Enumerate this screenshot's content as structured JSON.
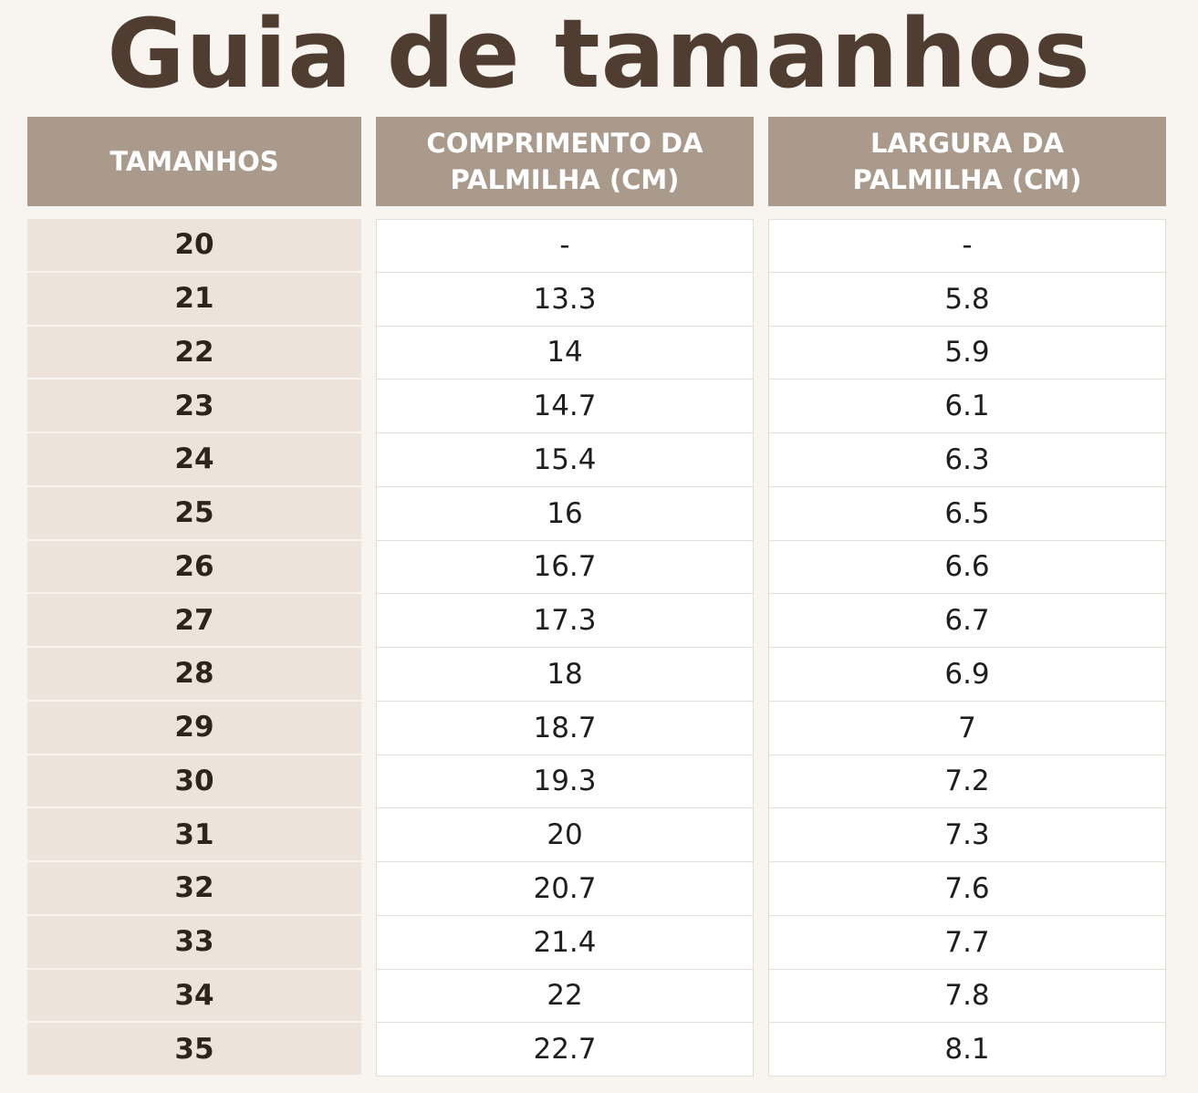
{
  "header": {
    "title": "Guia de tamanhos"
  },
  "table": {
    "columns": [
      "TAMANHOS",
      "COMPRIMENTO DA PALMILHA (CM)",
      "LARGURA DA PALMILHA (CM)"
    ],
    "rows": [
      [
        "20",
        "-",
        "-"
      ],
      [
        "21",
        "13.3",
        "5.8"
      ],
      [
        "22",
        "14",
        "5.9"
      ],
      [
        "23",
        "14.7",
        "6.1"
      ],
      [
        "24",
        "15.4",
        "6.3"
      ],
      [
        "25",
        "16",
        "6.5"
      ],
      [
        "26",
        "16.7",
        "6.6"
      ],
      [
        "27",
        "17.3",
        "6.7"
      ],
      [
        "28",
        "18",
        "6.9"
      ],
      [
        "29",
        "18.7",
        "7"
      ],
      [
        "30",
        "19.3",
        "7.2"
      ],
      [
        "31",
        "20",
        "7.3"
      ],
      [
        "32",
        "20.7",
        "7.6"
      ],
      [
        "33",
        "21.4",
        "7.7"
      ],
      [
        "34",
        "22",
        "7.8"
      ],
      [
        "35",
        "22.7",
        "8.1"
      ]
    ]
  }
}
